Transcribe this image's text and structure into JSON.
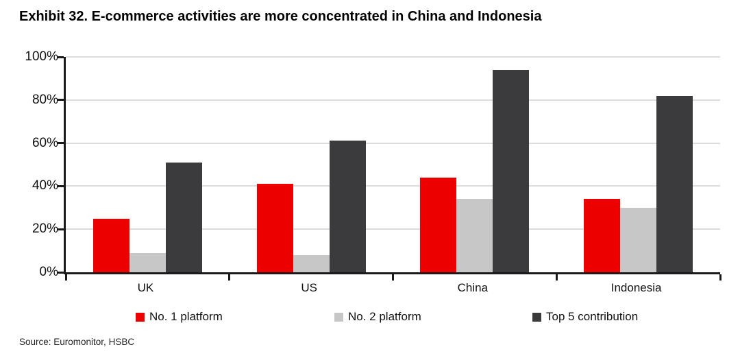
{
  "title": "Exhibit 32. E-commerce activities are more concentrated in China and Indonesia",
  "source": "Source: Euromonitor, HSBC",
  "colors": {
    "no1_platform": "#ec0000",
    "no2_platform": "#c7c7c7",
    "top5_contribution": "#3b3b3d",
    "grid": "#dcdcdc",
    "axis": "#1a1a1a"
  },
  "y_axis": {
    "tick_labels": [
      "100%",
      "80%",
      "60%",
      "40%",
      "20%",
      "0%"
    ],
    "tick_values": [
      100,
      80,
      60,
      40,
      20,
      0
    ]
  },
  "legend": {
    "items": [
      {
        "label": "No. 1 platform",
        "color": "#ec0000"
      },
      {
        "label": "No. 2 platform",
        "color": "#c7c7c7"
      },
      {
        "label": "Top 5 contribution",
        "color": "#3b3b3d"
      }
    ]
  },
  "chart_data": {
    "type": "bar",
    "title": "Exhibit 32. E-commerce activities are more concentrated in China and Indonesia",
    "categories": [
      "UK",
      "US",
      "China",
      "Indonesia"
    ],
    "series": [
      {
        "name": "No. 1 platform",
        "color": "#ec0000",
        "values": [
          25,
          41,
          44,
          34
        ]
      },
      {
        "name": "No. 2 platform",
        "color": "#c7c7c7",
        "values": [
          9,
          8,
          34,
          30
        ]
      },
      {
        "name": "Top 5 contribution",
        "color": "#3b3b3d",
        "values": [
          51,
          61,
          94,
          82
        ]
      }
    ],
    "xlabel": "",
    "ylabel": "",
    "ylim": [
      0,
      100
    ],
    "y_tick_step": 20,
    "y_tick_format": "percent",
    "grid": true,
    "legend_position": "bottom",
    "source": "Source: Euromonitor, HSBC"
  }
}
